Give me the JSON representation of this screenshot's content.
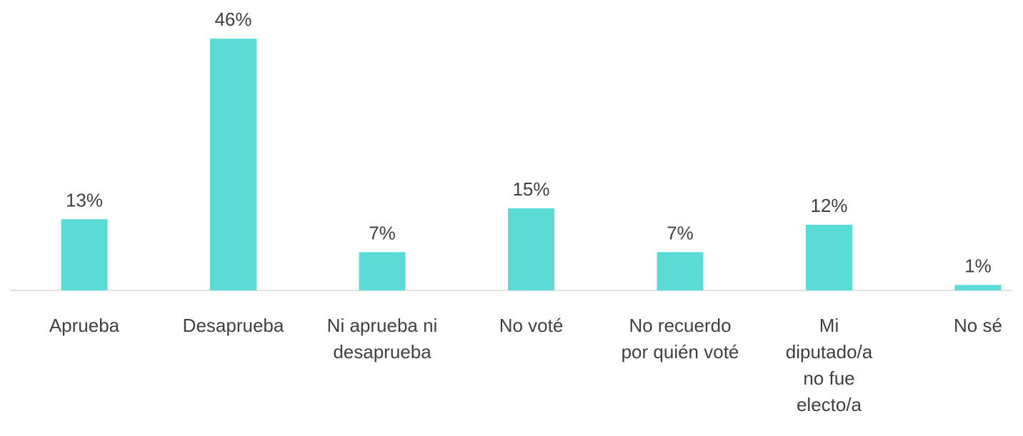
{
  "chart_data": {
    "type": "bar",
    "categories": [
      "Aprueba",
      "Desaprueba",
      "Ni aprueba ni desaprueba",
      "No voté",
      "No recuerdo por quién voté",
      "Mi diputado/a no fue electo/a",
      "No sé"
    ],
    "values": [
      13,
      46,
      7,
      15,
      7,
      12,
      1
    ],
    "value_labels": [
      "13%",
      "46%",
      "7%",
      "15%",
      "7%",
      "12%",
      "1%"
    ],
    "color": "#5bdbd6"
  }
}
